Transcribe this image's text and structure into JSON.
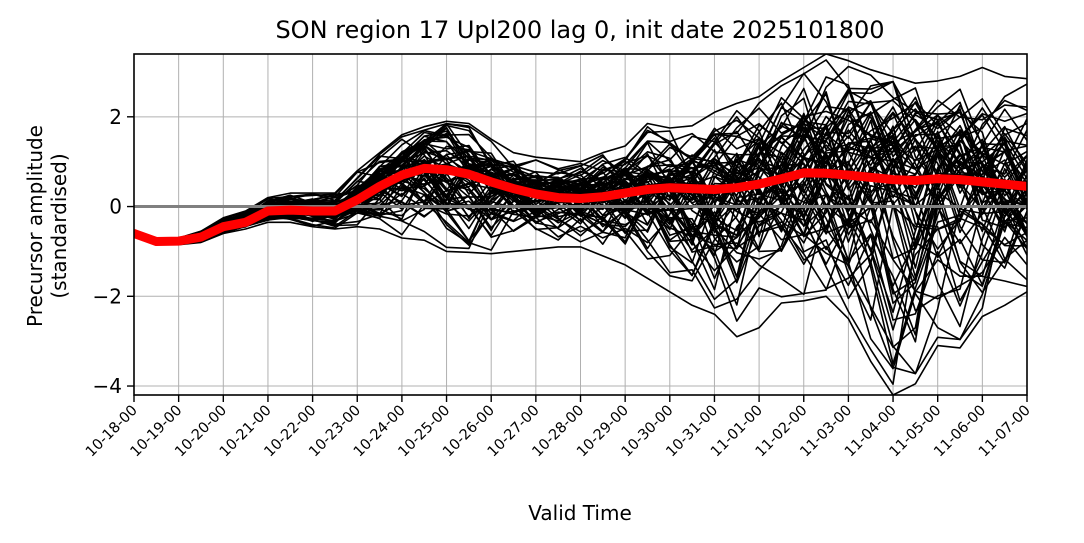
{
  "chart_data": {
    "type": "line",
    "title": "SON region 17 Upl200 lag 0, init date 2025101800",
    "xlabel": "Valid Time",
    "ylabel_line1": "Precursor amplitude",
    "ylabel_line2": "(standardised)",
    "x_tick_labels": [
      "10-18-00",
      "10-19-00",
      "10-20-00",
      "10-21-00",
      "10-22-00",
      "10-23-00",
      "10-24-00",
      "10-25-00",
      "10-26-00",
      "10-27-00",
      "10-28-00",
      "10-29-00",
      "10-30-00",
      "10-31-00",
      "11-01-00",
      "11-02-00",
      "11-03-00",
      "11-04-00",
      "11-05-00",
      "11-06-00",
      "11-07-00"
    ],
    "y_ticks": [
      -4,
      -2,
      0,
      2
    ],
    "y_tick_labels": [
      "−4",
      "−2",
      "0",
      "2"
    ],
    "ylim": [
      -4.2,
      3.4
    ],
    "xlim_days": [
      0,
      20
    ],
    "grid": true,
    "x_step_days": 0.5,
    "zero_line_color": "#808080",
    "member_color": "#000000",
    "mean_color": "#ff0000",
    "ensemble_mean": {
      "name": "ensemble mean",
      "values": [
        -0.6,
        -0.78,
        -0.77,
        -0.68,
        -0.45,
        -0.35,
        -0.1,
        -0.08,
        -0.1,
        -0.1,
        0.15,
        0.45,
        0.7,
        0.85,
        0.82,
        0.72,
        0.55,
        0.4,
        0.28,
        0.2,
        0.18,
        0.22,
        0.3,
        0.38,
        0.42,
        0.4,
        0.38,
        0.42,
        0.5,
        0.62,
        0.75,
        0.74,
        0.7,
        0.65,
        0.6,
        0.58,
        0.62,
        0.6,
        0.55,
        0.5,
        0.45
      ]
    },
    "ensemble_spread_note": "many black member lines around the mean",
    "member_extremes": {
      "max_values": [
        -0.55,
        -0.72,
        -0.7,
        -0.55,
        -0.25,
        -0.1,
        0.2,
        0.3,
        0.3,
        0.3,
        0.8,
        1.2,
        1.6,
        1.78,
        1.9,
        1.85,
        1.5,
        1.2,
        1.1,
        1.05,
        1.0,
        1.2,
        1.35,
        1.85,
        1.75,
        1.8,
        2.1,
        2.3,
        2.45,
        2.8,
        3.1,
        3.4,
        3.25,
        3.05,
        2.9,
        2.75,
        2.8,
        2.9,
        3.1,
        2.9,
        2.85
      ],
      "min_values": [
        -0.65,
        -0.85,
        -0.85,
        -0.8,
        -0.6,
        -0.5,
        -0.35,
        -0.35,
        -0.45,
        -0.5,
        -0.45,
        -0.5,
        -0.7,
        -0.75,
        -1.0,
        -1.02,
        -1.05,
        -1.0,
        -0.95,
        -0.9,
        -0.9,
        -1.1,
        -1.3,
        -1.6,
        -1.9,
        -2.2,
        -2.4,
        -2.9,
        -2.7,
        -2.15,
        -2.1,
        -2.0,
        -2.5,
        -3.45,
        -4.2,
        -3.95,
        -3.1,
        -3.15,
        -2.45,
        -2.2,
        -1.9
      ]
    }
  }
}
